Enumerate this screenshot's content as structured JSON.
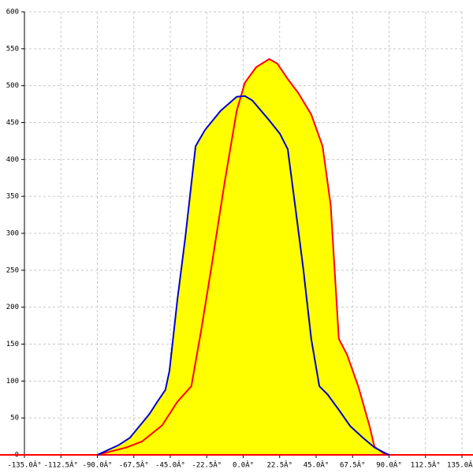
{
  "chart_data": {
    "type": "area",
    "fill_color": "#ffff00",
    "grid": true,
    "xlim": [
      -135,
      135
    ],
    "ylim": [
      0,
      600
    ],
    "xticks": [
      {
        "value": -135,
        "label": "-135.0Â°"
      },
      {
        "value": -112.5,
        "label": "-112.5Â°"
      },
      {
        "value": -90,
        "label": "-90.0Â°"
      },
      {
        "value": -67.5,
        "label": "-67.5Â°"
      },
      {
        "value": -45,
        "label": "-45.0Â°"
      },
      {
        "value": -22.5,
        "label": "-22.5Â°"
      },
      {
        "value": 0,
        "label": "0.0Â°"
      },
      {
        "value": 22.5,
        "label": "22.5Â°"
      },
      {
        "value": 45,
        "label": "45.0Â°"
      },
      {
        "value": 67.5,
        "label": "67.5Â°"
      },
      {
        "value": 90,
        "label": "90.0Â°"
      },
      {
        "value": 112.5,
        "label": "112.5Â°"
      },
      {
        "value": 135,
        "label": "135.0Â°"
      }
    ],
    "yticks": [
      0,
      50,
      100,
      150,
      200,
      250,
      300,
      350,
      400,
      450,
      500,
      550,
      600
    ],
    "series": [
      {
        "color": "#ff0000",
        "x": [
          -90,
          -72,
          -62.5,
          -50,
          -40.6,
          -32,
          -26,
          -19.7,
          -11.4,
          -4,
          1,
          8,
          16,
          21,
          27.5,
          34,
          42,
          49,
          54,
          59,
          64,
          71,
          78,
          81,
          88
        ],
        "values": [
          0,
          10,
          18,
          40,
          72,
          93,
          168,
          253,
          370,
          466,
          504,
          525,
          536,
          530,
          509,
          490,
          461,
          418,
          338,
          157,
          136,
          93,
          39,
          11,
          0
        ]
      },
      {
        "color": "#0000cc",
        "x": [
          -90,
          -77,
          -70,
          -58,
          -53,
          -48,
          -45.5,
          -40.6,
          -35.7,
          -29.4,
          -23.6,
          -13.9,
          -4,
          1,
          5.6,
          15.3,
          22.6,
          27.5,
          32,
          37,
          42,
          47,
          52,
          59,
          66,
          74,
          81,
          88,
          90
        ],
        "values": [
          0,
          13,
          23,
          55,
          72,
          88,
          114,
          210,
          295,
          418,
          440,
          466,
          485,
          486,
          480,
          455,
          435,
          414,
          338,
          253,
          157,
          93,
          82,
          61,
          39,
          23,
          10,
          2,
          0
        ]
      }
    ]
  }
}
